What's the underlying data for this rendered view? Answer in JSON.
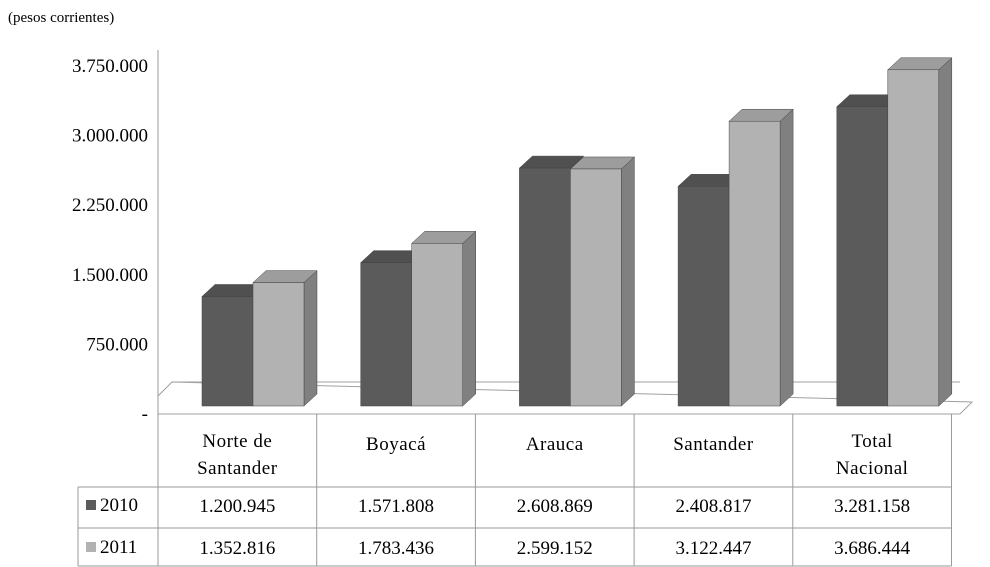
{
  "chart_data": {
    "type": "bar",
    "title": "",
    "unit_note": "(pesos corrientes)",
    "xlabel": "",
    "ylabel": "",
    "ylim": [
      0,
      3750000
    ],
    "yticks": [
      0,
      750000,
      1500000,
      2250000,
      3000000,
      3750000
    ],
    "ytick_labels": [
      "-",
      "750.000",
      "1.500.000",
      "2.250.000",
      "3.000.000",
      "3.750.000"
    ],
    "grid": false,
    "categories": [
      "Norte de Santander",
      "Boyacá",
      "Arauca",
      "Santander",
      "Total Nacional"
    ],
    "category_lines": [
      [
        "Norte de",
        "Santander"
      ],
      [
        "Boyacá"
      ],
      [
        "Arauca"
      ],
      [
        "Santander"
      ],
      [
        "Total",
        "Nacional"
      ]
    ],
    "series": [
      {
        "name": "2010",
        "color": "#5b5b5b",
        "values": [
          1200945,
          1571808,
          2608869,
          2408817,
          3281158
        ],
        "labels": [
          "1.200.945",
          "1.571.808",
          "2.608.869",
          "2.408.817",
          "3.281.158"
        ]
      },
      {
        "name": "2011",
        "color": "#b2b2b2",
        "values": [
          1352816,
          1783436,
          2599152,
          3122447,
          3686444
        ],
        "labels": [
          "1.352.816",
          "1.783.436",
          "2.599.152",
          "3.122.447",
          "3.686.444"
        ]
      }
    ],
    "legend": "data-table"
  }
}
